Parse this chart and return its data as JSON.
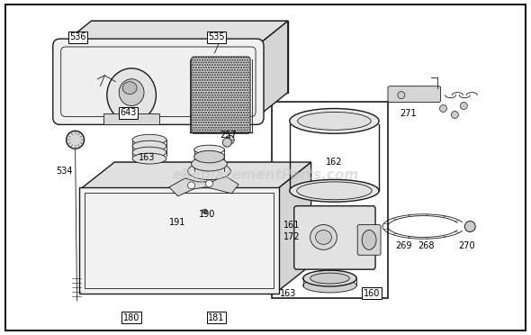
{
  "bg_color": "#ffffff",
  "line_color": "#1a1a1a",
  "watermark": "eReplacementParts.com",
  "watermark_color": "#c8c8c8",
  "watermark_fontsize": 11,
  "fig_width": 5.9,
  "fig_height": 3.72,
  "dpi": 100
}
